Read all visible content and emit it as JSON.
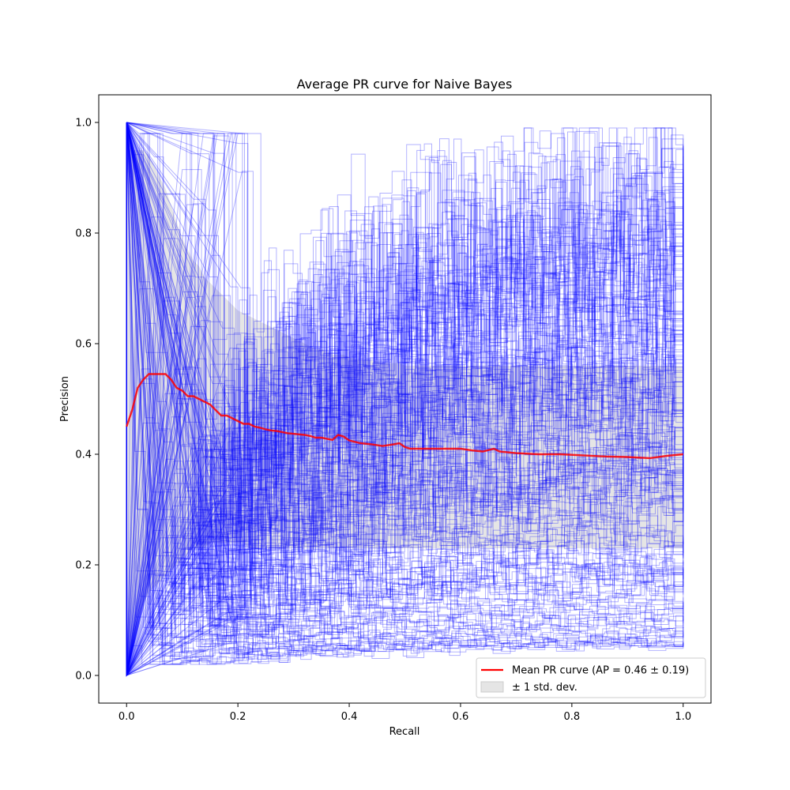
{
  "chart_data": {
    "type": "line",
    "title": "Average PR curve for Naive Bayes",
    "xlabel": "Recall",
    "ylabel": "Precision",
    "xlim": [
      -0.05,
      1.05
    ],
    "ylim": [
      -0.05,
      1.05
    ],
    "xticks": [
      0.0,
      0.2,
      0.4,
      0.6,
      0.8,
      1.0
    ],
    "xtick_labels": [
      "0.0",
      "0.2",
      "0.4",
      "0.6",
      "0.8",
      "1.0"
    ],
    "yticks": [
      0.0,
      0.2,
      0.4,
      0.6,
      0.8,
      1.0
    ],
    "ytick_labels": [
      "0.0",
      "0.2",
      "0.4",
      "0.6",
      "0.8",
      "1.0"
    ],
    "grid": false,
    "individual_curves": {
      "count": 200,
      "color": "#0000ff",
      "opacity": 0.3,
      "final_precision_range": [
        0.05,
        0.92
      ]
    },
    "series": [
      {
        "name": "Mean PR curve (AP = 0.46 ± 0.19)",
        "color": "#ff0000",
        "x": [
          0.0,
          0.01,
          0.02,
          0.03,
          0.04,
          0.05,
          0.06,
          0.07,
          0.08,
          0.09,
          0.1,
          0.11,
          0.12,
          0.13,
          0.14,
          0.15,
          0.16,
          0.17,
          0.18,
          0.19,
          0.2,
          0.21,
          0.22,
          0.23,
          0.24,
          0.25,
          0.26,
          0.27,
          0.28,
          0.29,
          0.3,
          0.31,
          0.32,
          0.33,
          0.34,
          0.35,
          0.36,
          0.37,
          0.38,
          0.39,
          0.4,
          0.42,
          0.44,
          0.46,
          0.48,
          0.49,
          0.5,
          0.51,
          0.52,
          0.54,
          0.56,
          0.58,
          0.6,
          0.62,
          0.64,
          0.66,
          0.67,
          0.7,
          0.74,
          0.78,
          0.82,
          0.86,
          0.9,
          0.94,
          0.97,
          1.0
        ],
        "y": [
          0.45,
          0.48,
          0.52,
          0.535,
          0.545,
          0.545,
          0.545,
          0.545,
          0.535,
          0.52,
          0.515,
          0.505,
          0.505,
          0.5,
          0.495,
          0.49,
          0.48,
          0.47,
          0.47,
          0.465,
          0.46,
          0.455,
          0.455,
          0.45,
          0.448,
          0.445,
          0.443,
          0.442,
          0.44,
          0.438,
          0.437,
          0.436,
          0.435,
          0.433,
          0.43,
          0.43,
          0.428,
          0.426,
          0.435,
          0.432,
          0.425,
          0.42,
          0.418,
          0.415,
          0.418,
          0.42,
          0.413,
          0.41,
          0.41,
          0.41,
          0.41,
          0.41,
          0.41,
          0.407,
          0.405,
          0.41,
          0.405,
          0.402,
          0.4,
          0.4,
          0.398,
          0.396,
          0.395,
          0.393,
          0.397,
          0.4
        ]
      }
    ],
    "std_band": {
      "name": "± 1 std. dev.",
      "color": "#cccccc",
      "lower": [
        0.0,
        0.05,
        0.1,
        0.13,
        0.15,
        0.16,
        0.17,
        0.18,
        0.19,
        0.2,
        0.21,
        0.22,
        0.23,
        0.23,
        0.23,
        0.24,
        0.24,
        0.24,
        0.24,
        0.24,
        0.24,
        0.24,
        0.23,
        0.23,
        0.23,
        0.23,
        0.23,
        0.23,
        0.23,
        0.23,
        0.23,
        0.23,
        0.23,
        0.23,
        0.23,
        0.23,
        0.23,
        0.23,
        0.23,
        0.23,
        0.23,
        0.23,
        0.23,
        0.23,
        0.23,
        0.23,
        0.23,
        0.23,
        0.23,
        0.23,
        0.23,
        0.23,
        0.23,
        0.23,
        0.23,
        0.23,
        0.23,
        0.23,
        0.23,
        0.23,
        0.23,
        0.23,
        0.23,
        0.23,
        0.23,
        0.23
      ],
      "upper": [
        1.0,
        0.95,
        0.95,
        0.95,
        0.94,
        0.92,
        0.9,
        0.88,
        0.85,
        0.82,
        0.79,
        0.77,
        0.75,
        0.74,
        0.72,
        0.71,
        0.7,
        0.69,
        0.68,
        0.67,
        0.66,
        0.655,
        0.65,
        0.645,
        0.64,
        0.635,
        0.63,
        0.625,
        0.62,
        0.615,
        0.61,
        0.605,
        0.6,
        0.595,
        0.59,
        0.59,
        0.585,
        0.58,
        0.58,
        0.58,
        0.575,
        0.57,
        0.57,
        0.565,
        0.565,
        0.565,
        0.56,
        0.56,
        0.56,
        0.56,
        0.56,
        0.56,
        0.56,
        0.56,
        0.56,
        0.56,
        0.56,
        0.56,
        0.56,
        0.56,
        0.56,
        0.56,
        0.56,
        0.56,
        0.56,
        0.56
      ]
    },
    "legend": {
      "position": "lower-right",
      "entries": [
        {
          "label": "Mean PR curve (AP = 0.46 ± 0.19)",
          "kind": "line",
          "color": "#ff0000"
        },
        {
          "label": "± 1 std. dev.",
          "kind": "patch",
          "color": "#cccccc"
        }
      ]
    }
  }
}
